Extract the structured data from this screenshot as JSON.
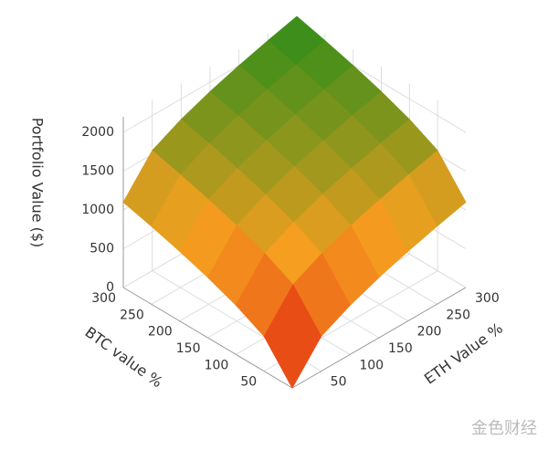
{
  "chart_data": {
    "type": "surface",
    "zlabel": "Portfolio Value ($)",
    "xlabel": "BTC value %",
    "ylabel": "ETH Value %",
    "x": [
      0,
      50,
      100,
      150,
      200,
      250,
      300
    ],
    "y": [
      0,
      50,
      100,
      150,
      200,
      250,
      300
    ],
    "z": [
      [
        0,
        449,
        635,
        778,
        898,
        1004,
        1100
      ],
      [
        449,
        898,
        1084,
        1227,
        1347,
        1453,
        1549
      ],
      [
        635,
        1084,
        1270,
        1413,
        1533,
        1639,
        1735
      ],
      [
        778,
        1227,
        1413,
        1556,
        1676,
        1782,
        1878
      ],
      [
        898,
        1347,
        1533,
        1676,
        1796,
        1902,
        1998
      ],
      [
        1004,
        1453,
        1639,
        1782,
        1902,
        2008,
        2104
      ],
      [
        1100,
        1549,
        1735,
        1878,
        1998,
        2104,
        2200
      ]
    ],
    "xlim": [
      0,
      300
    ],
    "ylim": [
      0,
      300
    ],
    "zlim": [
      0,
      2200
    ],
    "xticks": [
      50,
      100,
      150,
      200,
      250,
      300
    ],
    "yticks": [
      50,
      100,
      150,
      200,
      250,
      300
    ],
    "zticks": [
      0,
      500,
      1000,
      1500,
      2000
    ],
    "colors": [
      "#e0140f",
      "#f5a020",
      "#2b8c1a"
    ],
    "grid": true,
    "watermark": "金色财经"
  }
}
